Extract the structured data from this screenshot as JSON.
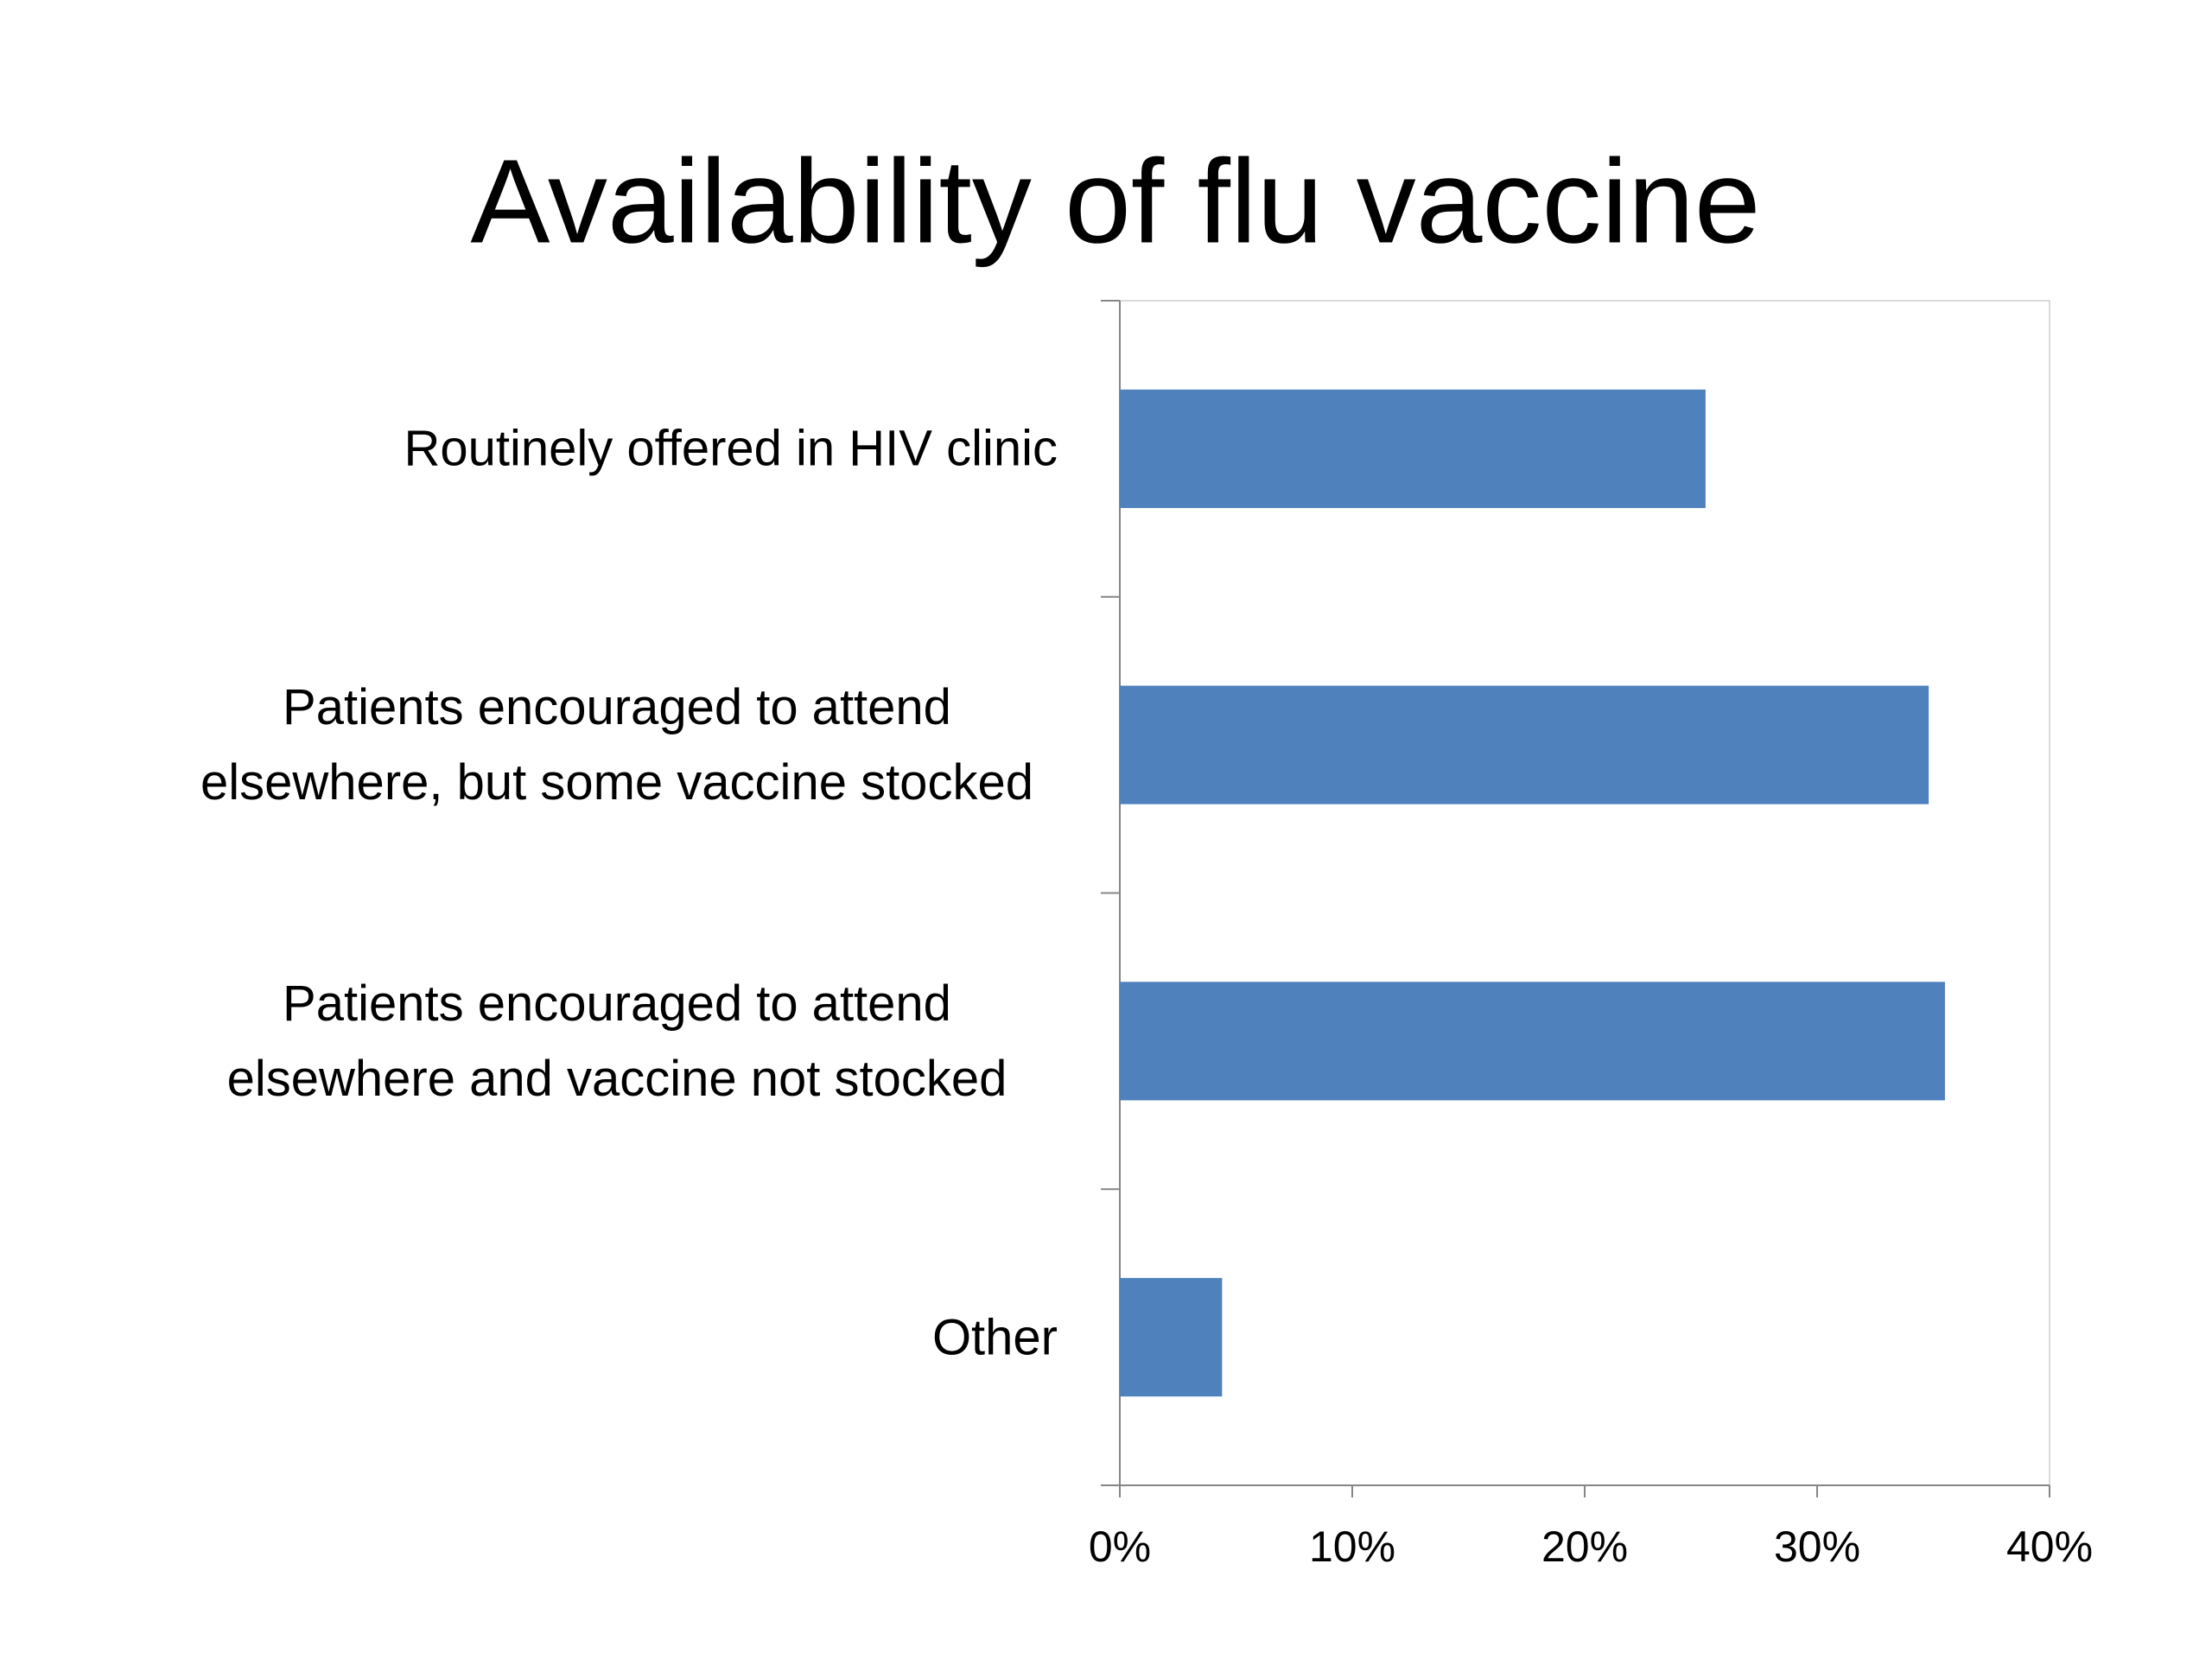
{
  "chart_data": {
    "type": "barh",
    "title": "Availability of flu vaccine",
    "categories": [
      "Routinely offered in HIV clinic",
      "Patients encouraged to attend elsewhere, but some vaccine stocked",
      "Patients encouraged to attend elsewhere and vaccine not stocked",
      "Other"
    ],
    "values": [
      25.2,
      34.8,
      35.5,
      4.4
    ],
    "color": "#4f81bd",
    "xlim": [
      0,
      40
    ],
    "xticks": [
      {
        "value": 0,
        "label": "0%"
      },
      {
        "value": 10,
        "label": "10%"
      },
      {
        "value": 20,
        "label": "20%"
      },
      {
        "value": 30,
        "label": "30%"
      },
      {
        "value": 40,
        "label": "40%"
      }
    ]
  }
}
